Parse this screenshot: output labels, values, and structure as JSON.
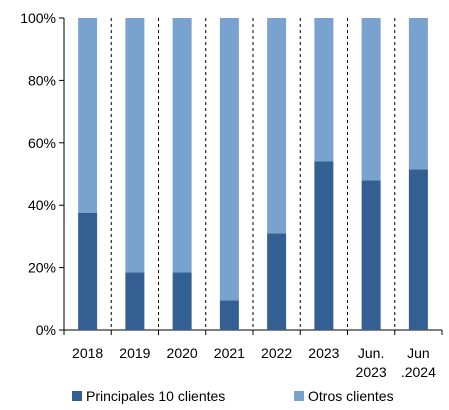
{
  "chart_data": {
    "type": "bar",
    "stacked": true,
    "categories": [
      "2018",
      "2019",
      "2020",
      "2021",
      "2022",
      "2023",
      "Jun.\n2023",
      "Jun\n.2024"
    ],
    "series": [
      {
        "name": "Principales 10 clientes",
        "color": "#335f92",
        "values": [
          37.5,
          18.5,
          18.5,
          9.5,
          31,
          54,
          48,
          51.5
        ]
      },
      {
        "name": "Otros clientes",
        "color": "#7aa2ce",
        "values": [
          62.5,
          81.5,
          81.5,
          90.5,
          69,
          46,
          52,
          48.5
        ]
      }
    ],
    "yticks": [
      "0%",
      "20%",
      "40%",
      "60%",
      "80%",
      "100%"
    ],
    "ylim": [
      0,
      100
    ],
    "grid": "vertical dashed between categories",
    "legend_position": "bottom"
  }
}
